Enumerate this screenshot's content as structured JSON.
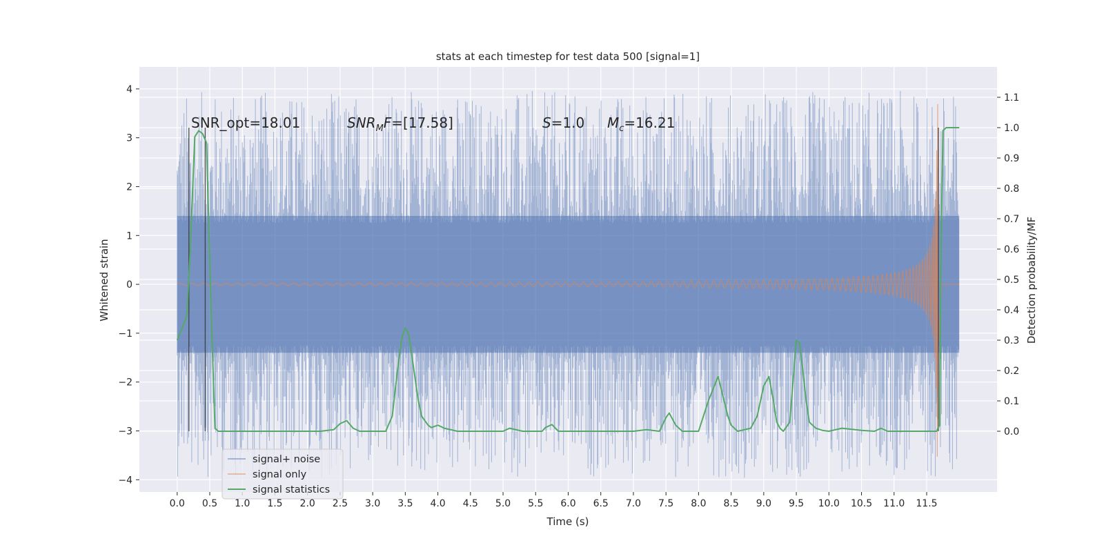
{
  "chart_data": {
    "type": "line",
    "title": "stats at each timestep for test data 500 [signal=1]",
    "xlabel": "Time (s)",
    "ylabel": "Whitened strain",
    "ylabel_right": "Detection probability/MF",
    "xlim": [
      -0.58,
      12.58
    ],
    "ylim": [
      -4.25,
      4.45
    ],
    "ylim_right": [
      -0.2,
      1.2
    ],
    "x_ticks": [
      "0.0",
      "0.5",
      "1.0",
      "1.5",
      "2.0",
      "2.5",
      "3.0",
      "3.5",
      "4.0",
      "4.5",
      "5.0",
      "5.5",
      "6.0",
      "6.5",
      "7.0",
      "7.5",
      "8.0",
      "8.5",
      "9.0",
      "9.5",
      "10.0",
      "10.5",
      "11.0",
      "11.5"
    ],
    "y_ticks": [
      "4",
      "3",
      "2",
      "1",
      "0",
      "−1",
      "−2",
      "−3",
      "−4"
    ],
    "y_ticks_right": [
      "1.1",
      "1.0",
      "0.9",
      "0.8",
      "0.7",
      "0.6",
      "0.5",
      "0.4",
      "0.3",
      "0.2",
      "0.1",
      "0.0"
    ],
    "grid": true,
    "legend_position": "lower-left",
    "annotations": {
      "snr_opt": "SNR_opt=18.01",
      "snr_mf": "=[17.58]",
      "snr_mf_symbol": "SNR",
      "snr_mf_sub": "M",
      "snr_mf_f": "F",
      "s_symbol": "S",
      "s_value": "=1.0",
      "mc_symbol": "M",
      "mc_sub": "c",
      "mc_value": "=16.21"
    },
    "vertical_markers_x": [
      0.18,
      0.43,
      11.68
    ],
    "series": [
      {
        "name": "signal+ noise",
        "color": "#4c72b0",
        "style": "noise-fill",
        "x_range": [
          0.0,
          12.0
        ],
        "envelope": [
          -1.4,
          1.4
        ],
        "peak_abs_max": 4.1
      },
      {
        "name": "signal only",
        "color": "#dd8452",
        "style": "chirp",
        "x_range": [
          0.0,
          12.0
        ],
        "merger_x": 11.68,
        "max_amplitude": 3.8
      },
      {
        "name": "signal statistics",
        "color": "#55a868",
        "axis": "right",
        "x": [
          0.0,
          0.15,
          0.2,
          0.27,
          0.33,
          0.39,
          0.45,
          0.52,
          0.58,
          0.63,
          0.7,
          1.0,
          1.5,
          2.0,
          2.2,
          2.4,
          2.5,
          2.6,
          2.7,
          2.8,
          3.0,
          3.2,
          3.3,
          3.38,
          3.45,
          3.5,
          3.55,
          3.6,
          3.7,
          3.75,
          3.85,
          3.9,
          4.0,
          4.1,
          4.3,
          5.0,
          5.1,
          5.3,
          5.6,
          5.65,
          5.75,
          5.85,
          6.0,
          6.5,
          7.0,
          7.2,
          7.4,
          7.5,
          7.55,
          7.65,
          7.75,
          8.0,
          8.15,
          8.3,
          8.45,
          8.5,
          8.6,
          8.8,
          8.9,
          9.0,
          9.08,
          9.15,
          9.2,
          9.25,
          9.3,
          9.4,
          9.5,
          9.55,
          9.6,
          9.65,
          9.7,
          9.8,
          9.9,
          10.0,
          10.2,
          10.5,
          10.7,
          10.8,
          10.9,
          11.2,
          11.65,
          11.7,
          11.72,
          11.75,
          11.8,
          11.85,
          12.0
        ],
        "values": [
          0.3,
          0.38,
          0.6,
          0.97,
          0.99,
          0.98,
          0.95,
          0.4,
          0.01,
          0.0,
          0.0,
          0.0,
          0.0,
          0.0,
          0.0,
          0.005,
          0.025,
          0.035,
          0.01,
          0.0,
          0.0,
          0.0,
          0.05,
          0.2,
          0.31,
          0.34,
          0.32,
          0.25,
          0.1,
          0.05,
          0.02,
          0.012,
          0.02,
          0.01,
          0.0,
          0.0,
          0.01,
          0.0,
          0.0,
          0.012,
          0.022,
          0.0,
          0.0,
          0.0,
          0.0,
          0.005,
          0.0,
          0.045,
          0.06,
          0.02,
          0.0,
          0.0,
          0.1,
          0.18,
          0.05,
          0.02,
          0.0,
          0.01,
          0.05,
          0.15,
          0.18,
          0.1,
          0.03,
          0.01,
          0.0,
          0.03,
          0.3,
          0.29,
          0.2,
          0.1,
          0.03,
          0.01,
          0.003,
          0.0,
          0.01,
          0.003,
          0.0,
          0.01,
          0.0,
          0.0,
          0.0,
          0.02,
          0.6,
          0.99,
          1.0,
          1.0,
          1.0
        ]
      }
    ]
  }
}
